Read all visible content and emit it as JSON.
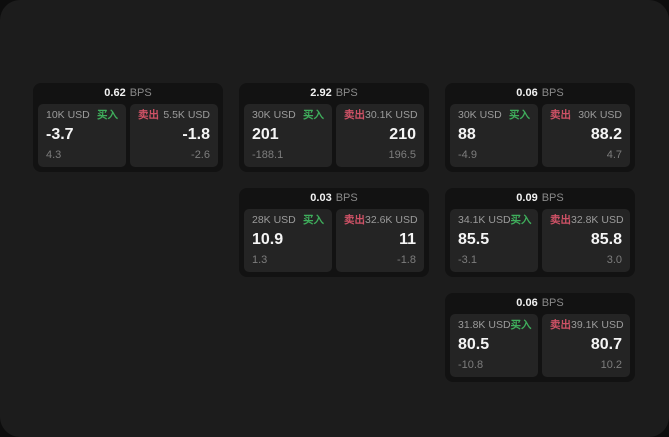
{
  "colors": {
    "panel_bg": "#1c1c1c",
    "card_bg": "#121212",
    "pane_bg": "#242424",
    "buy_green": "#3fae5c",
    "sell_red": "#cf5266",
    "primary_text": "#f5f5f5",
    "secondary_text": "#8a8a8a"
  },
  "labels": {
    "bps_unit": "BPS",
    "buy": "买入",
    "sell": "卖出"
  },
  "cards": [
    {
      "row": 1,
      "col": 1,
      "bps": "0.62",
      "buy": {
        "amount": "10K USD",
        "value": "-3.7",
        "delta": "4.3"
      },
      "sell": {
        "amount": "5.5K USD",
        "value": "-1.8",
        "delta": "-2.6"
      }
    },
    {
      "row": 1,
      "col": 2,
      "bps": "2.92",
      "buy": {
        "amount": "30K USD",
        "value": "201",
        "delta": "-188.1"
      },
      "sell": {
        "amount": "30.1K USD",
        "value": "210",
        "delta": "196.5"
      }
    },
    {
      "row": 1,
      "col": 3,
      "bps": "0.06",
      "buy": {
        "amount": "30K USD",
        "value": "88",
        "delta": "-4.9"
      },
      "sell": {
        "amount": "30K USD",
        "value": "88.2",
        "delta": "4.7"
      }
    },
    {
      "row": 2,
      "col": 2,
      "bps": "0.03",
      "buy": {
        "amount": "28K USD",
        "value": "10.9",
        "delta": "1.3"
      },
      "sell": {
        "amount": "32.6K USD",
        "value": "11",
        "delta": "-1.8"
      }
    },
    {
      "row": 2,
      "col": 3,
      "bps": "0.09",
      "buy": {
        "amount": "34.1K USD",
        "value": "85.5",
        "delta": "-3.1"
      },
      "sell": {
        "amount": "32.8K USD",
        "value": "85.8",
        "delta": "3.0"
      }
    },
    {
      "row": 3,
      "col": 3,
      "bps": "0.06",
      "buy": {
        "amount": "31.8K USD",
        "value": "80.5",
        "delta": "-10.8"
      },
      "sell": {
        "amount": "39.1K USD",
        "value": "80.7",
        "delta": "10.2"
      }
    }
  ]
}
